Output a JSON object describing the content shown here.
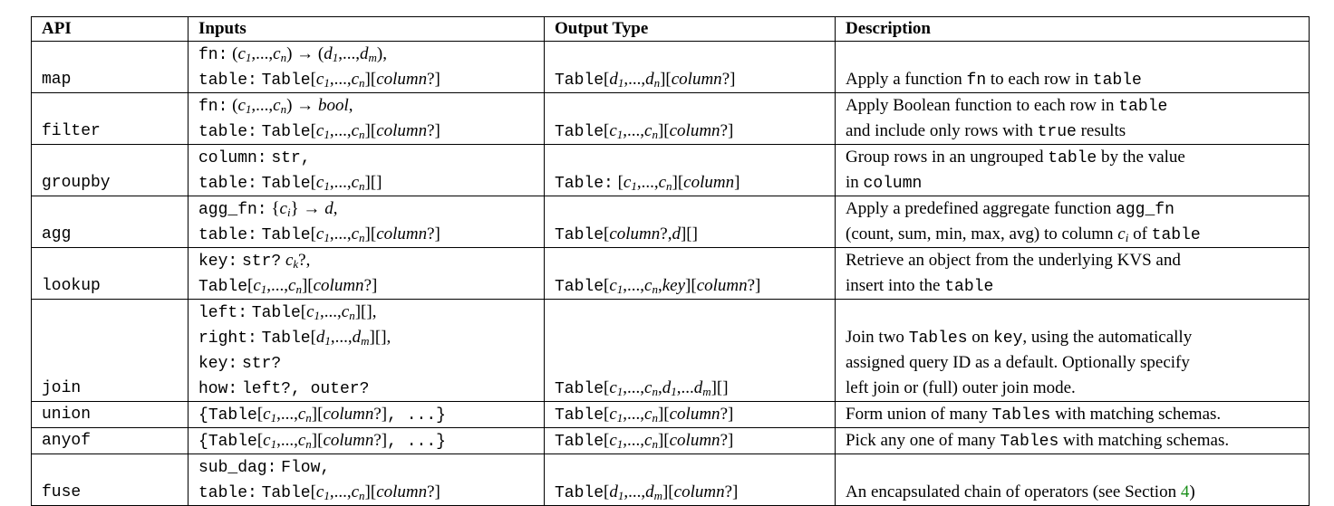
{
  "headers": {
    "api": "API",
    "inputs": "Inputs",
    "output": "Output Type",
    "description": "Description"
  },
  "rows": [
    {
      "api": "map",
      "inputs": [
        "fn: (c1,...,cn) → (d1,...,dm),",
        "table: Table[c1,...,cn][column?]"
      ],
      "output": "Table[d1,...,dn][column?]",
      "description": [
        "Apply a function fn to each row in table"
      ]
    },
    {
      "api": "filter",
      "inputs": [
        "fn: (c1,...,cn) → bool,",
        "table: Table[c1,...,cn][column?]"
      ],
      "output": "Table[c1,...,cn][column?]",
      "description": [
        "Apply Boolean function to each row in table",
        "and include only rows with true results"
      ]
    },
    {
      "api": "groupby",
      "inputs": [
        "column: str,",
        "table: Table[c1,...,cn][]"
      ],
      "output": "Table: [c1,...,cn][column]",
      "description": [
        "Group rows in an ungrouped table by the value",
        "in column"
      ]
    },
    {
      "api": "agg",
      "inputs": [
        "agg_fn: {ci} → d,",
        "table: Table[c1,...,cn][column?]"
      ],
      "output": "Table[column?,d][]",
      "description": [
        "Apply a predefined aggregate function agg_fn",
        "(count, sum, min, max, avg) to column ci of table"
      ]
    },
    {
      "api": "lookup",
      "inputs": [
        "key: str? ck?,",
        "Table[c1,...,cn][column?]"
      ],
      "output": "Table[c1,...,cn,key][column?]",
      "description": [
        "Retrieve an object from the underlying KVS and",
        "insert into the table"
      ]
    },
    {
      "api": "join",
      "inputs": [
        "left: Table[c1,...,cn][],",
        "right: Table[d1,...,dm][],",
        "key: str?",
        "how: left?, outer?"
      ],
      "output": "Table[c1,...,cn,d1,...dm][]",
      "description": [
        "Join two Tables on key, using the automatically",
        "assigned query ID as a default. Optionally specify",
        "left join or (full) outer join mode."
      ]
    },
    {
      "api": "union",
      "inputs": [
        "{Table[c1,...,cn][column?], ...}"
      ],
      "output": "Table[c1,...,cn][column?]",
      "description": [
        "Form union of many Tables with matching schemas."
      ]
    },
    {
      "api": "anyof",
      "inputs": [
        "{Table[c1,...,cn][column?], ...}"
      ],
      "output": "Table[c1,...,cn][column?]",
      "description": [
        "Pick any one of many Tables with matching schemas."
      ]
    },
    {
      "api": "fuse",
      "inputs": [
        "sub_dag: Flow,",
        "table: Table[c1,...,cn][column?]"
      ],
      "output": "Table[d1,...,dm][column?]",
      "description": [
        "An encapsulated chain of operators (see Section 4)"
      ],
      "section_ref": "4"
    }
  ]
}
